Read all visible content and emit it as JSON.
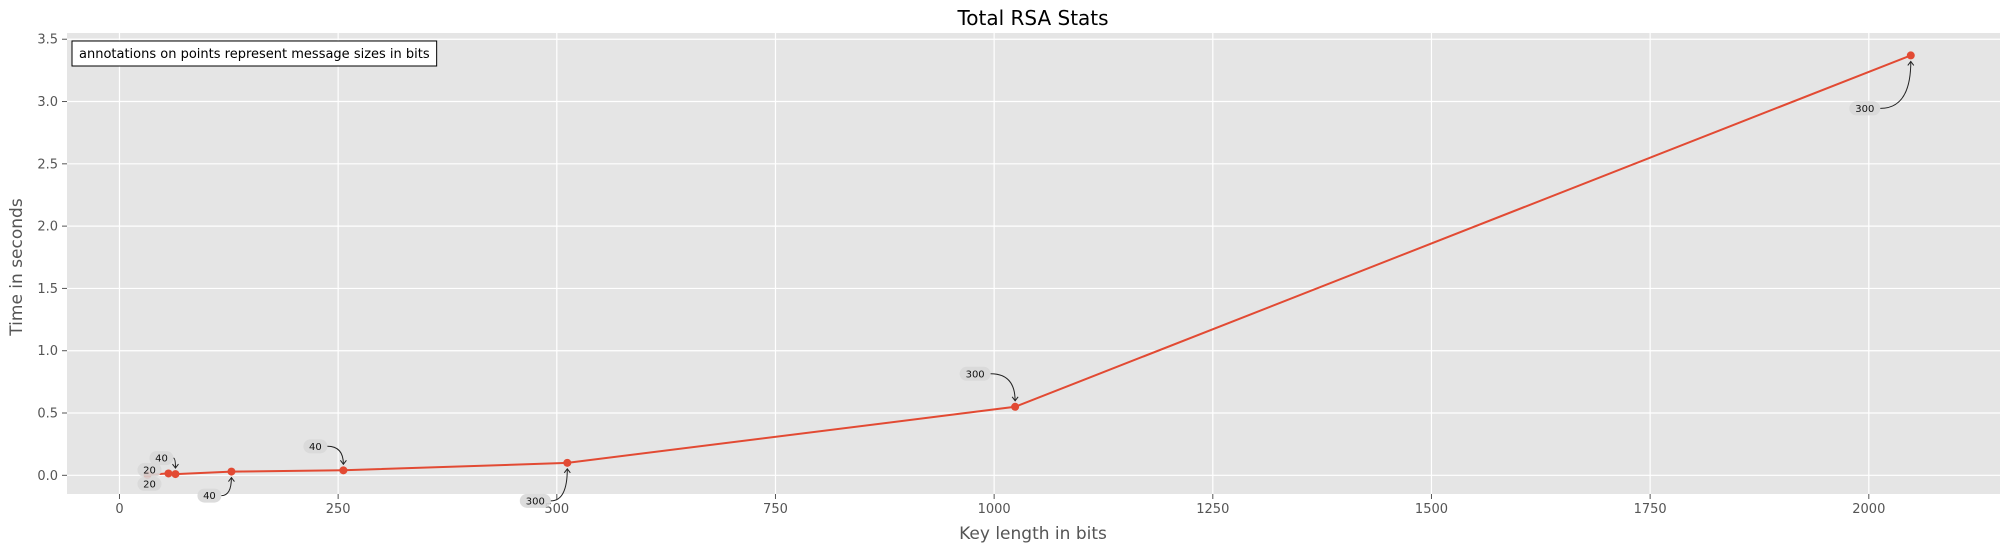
{
  "chart_data": {
    "type": "line",
    "title": "Total RSA Stats",
    "xlabel": "Key length in bits",
    "ylabel": "Time in seconds",
    "xlim": [
      -60,
      2150
    ],
    "ylim": [
      -0.15,
      3.55
    ],
    "xticks": [
      0,
      250,
      500,
      750,
      1000,
      1250,
      1500,
      1750,
      2000
    ],
    "yticks": [
      0.0,
      0.5,
      1.0,
      1.5,
      2.0,
      2.5,
      3.0,
      3.5
    ],
    "grid": true,
    "note": "annotations on points represent message sizes in bits",
    "colors": {
      "line": "#e24a33",
      "plot_bg": "#e5e5e5",
      "grid": "#ffffff"
    },
    "series": [
      {
        "points": [
          {
            "x": 32,
            "y": 0.003
          },
          {
            "x": 56,
            "y": 0.015
          },
          {
            "x": 64,
            "y": 0.01
          },
          {
            "x": 128,
            "y": 0.03
          },
          {
            "x": 256,
            "y": 0.04
          },
          {
            "x": 512,
            "y": 0.1
          },
          {
            "x": 1024,
            "y": 0.55
          },
          {
            "x": 2048,
            "y": 3.37
          }
        ]
      }
    ],
    "annotations": [
      {
        "text": "20",
        "x": 32,
        "y": 0.003
      },
      {
        "text": "20",
        "x": 32,
        "y": 0.003
      },
      {
        "text": "40",
        "x": 64,
        "y": 0.01
      },
      {
        "text": "40",
        "x": 128,
        "y": 0.03
      },
      {
        "text": "40",
        "x": 256,
        "y": 0.04
      },
      {
        "text": "300",
        "x": 512,
        "y": 0.1
      },
      {
        "text": "300",
        "x": 1024,
        "y": 0.55
      },
      {
        "text": "300",
        "x": 2048,
        "y": 3.37
      }
    ]
  }
}
